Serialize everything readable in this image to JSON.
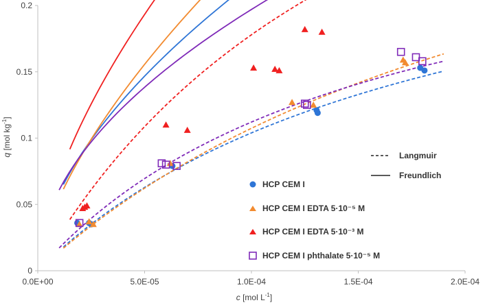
{
  "chart_data": {
    "type": "scatter",
    "title": "",
    "xlabel": {
      "var": "c",
      "unit_open": " [mol L",
      "unit_sup": "-1",
      "unit_close": "]"
    },
    "ylabel": {
      "var": "q",
      "unit_open": " [mol kg",
      "unit_sup": "-1",
      "unit_close": "]"
    },
    "xlim": [
      0,
      0.0002
    ],
    "ylim": [
      0,
      0.2
    ],
    "x_ticks": [
      0,
      5e-05,
      0.0001,
      0.00015,
      0.0002
    ],
    "x_tick_labels": [
      "0.0E+00",
      "5.0E-05",
      "1.0E-04",
      "1.5E-04",
      "2.0E-04"
    ],
    "y_ticks": [
      0,
      0.05,
      0.1,
      0.15,
      0.2
    ],
    "y_tick_labels": [
      "0",
      "0.05",
      "0.1",
      "0.15",
      "0.2"
    ],
    "grid": false,
    "line_legend": [
      {
        "label": "Langmuir",
        "style": "dashed"
      },
      {
        "label": "Freundlich",
        "style": "solid"
      }
    ],
    "series": [
      {
        "name": "HCP CEM I",
        "marker": "circle",
        "color": "#2E75D6",
        "points": [
          [
            1.85e-05,
            0.036
          ],
          [
            2.4e-05,
            0.036
          ],
          [
            2.5e-05,
            0.035
          ],
          [
            6.3e-05,
            0.079
          ],
          [
            0.0001305,
            0.121
          ],
          [
            0.000131,
            0.119
          ],
          [
            0.000179,
            0.153
          ],
          [
            0.000181,
            0.151
          ]
        ],
        "langmuir": {
          "qmax": 0.3,
          "K": 5300,
          "range": [
            1.2e-05,
            0.00019
          ]
        },
        "freundlich": {
          "Kf": 41.5,
          "n": 0.57,
          "range": [
            1.2e-05,
            0.00019
          ]
        }
      },
      {
        "name": "HCP CEM I EDTA 5·10⁻⁵ M",
        "marker": "triangle",
        "color": "#F28B30",
        "points": [
          [
            1.95e-05,
            0.035
          ],
          [
            2.4e-05,
            0.037
          ],
          [
            2.6e-05,
            0.035
          ],
          [
            6.2e-05,
            0.081
          ],
          [
            0.000119,
            0.127
          ],
          [
            0.000129,
            0.125
          ],
          [
            0.000171,
            0.159
          ],
          [
            0.000172,
            0.157
          ]
        ],
        "langmuir": {
          "qmax": 0.39,
          "K": 3800,
          "range": [
            1.2e-05,
            0.00019
          ]
        },
        "freundlich": {
          "Kf": 97.2,
          "n": 0.65,
          "range": [
            1.2e-05,
            0.00019
          ]
        }
      },
      {
        "name": "HCP CEM I EDTA 5·10⁻³ M",
        "marker": "triangle",
        "color": "#F02020",
        "points": [
          [
            2.1e-05,
            0.047
          ],
          [
            2.2e-05,
            0.048
          ],
          [
            2.3e-05,
            0.049
          ],
          [
            6e-05,
            0.11
          ],
          [
            7e-05,
            0.106
          ],
          [
            0.000101,
            0.153
          ],
          [
            0.000111,
            0.152
          ],
          [
            0.000113,
            0.151
          ],
          [
            0.000125,
            0.182
          ],
          [
            0.000133,
            0.18
          ]
        ],
        "langmuir": {
          "qmax": 0.49,
          "K": 5700,
          "range": [
            1.5e-05,
            0.00014
          ]
        },
        "freundlich": {
          "Kf": 89.7,
          "n": 0.62,
          "range": [
            1.5e-05,
            0.00014
          ]
        }
      },
      {
        "name": "HCP CEM I phthalate 5·10⁻⁵ M",
        "marker": "square",
        "color": "#7F2AB8",
        "points": [
          [
            1.95e-05,
            0.036
          ],
          [
            5.8e-05,
            0.081
          ],
          [
            6e-05,
            0.08
          ],
          [
            6.5e-05,
            0.079
          ],
          [
            0.000125,
            0.126
          ],
          [
            0.000126,
            0.125
          ],
          [
            0.00017,
            0.165
          ],
          [
            0.000177,
            0.161
          ],
          [
            0.00018,
            0.158
          ]
        ],
        "langmuir": {
          "qmax": 0.29,
          "K": 6300,
          "range": [
            1e-05,
            0.00019
          ]
        },
        "freundlich": {
          "Kf": 21.6,
          "n": 0.51,
          "range": [
            1e-05,
            0.00019
          ]
        }
      }
    ]
  }
}
